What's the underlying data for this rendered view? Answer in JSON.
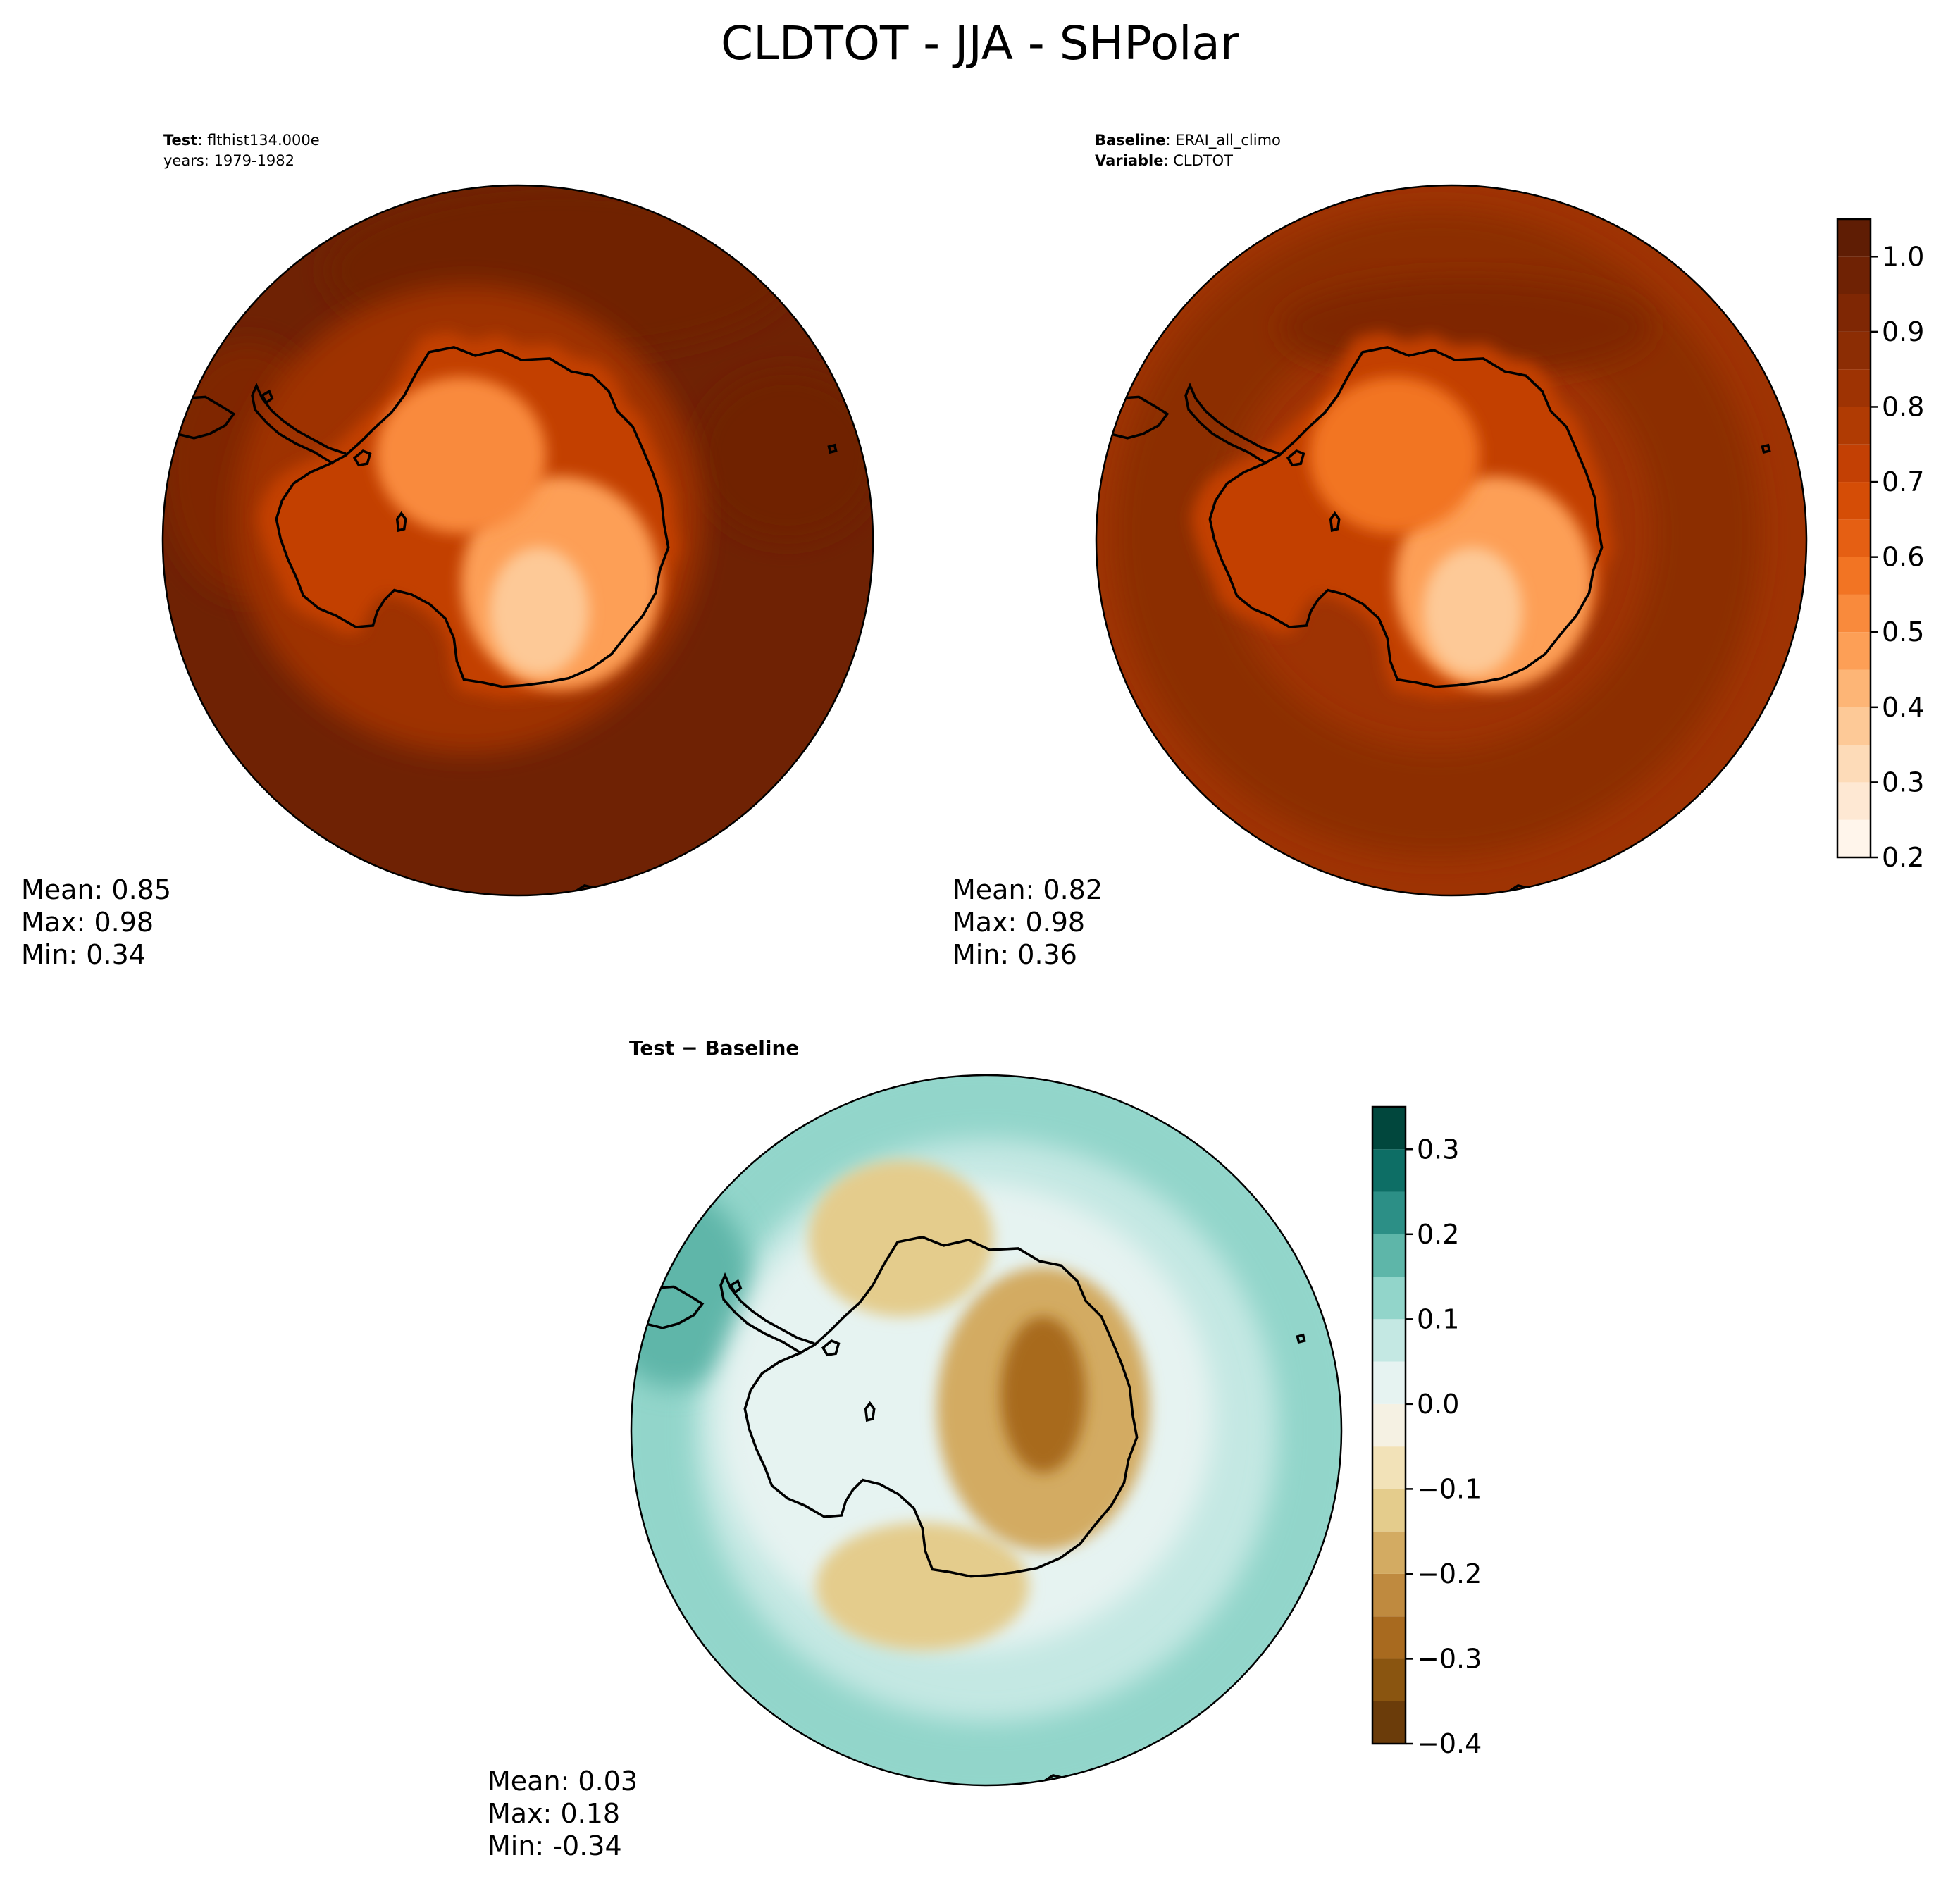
{
  "figure": {
    "suptitle": "CLDTOT - JJA - SHPolar"
  },
  "panels": {
    "test": {
      "label_bold": "Test",
      "label_text": ": flthist134.000e",
      "line2": "years: 1979-1982",
      "stats": {
        "mean": "Mean:  0.85",
        "max": "Max:  0.98",
        "min": "Min:  0.34"
      }
    },
    "baseline": {
      "label_bold": "Baseline",
      "label_text": ": ERAI_all_climo",
      "line2_bold": "Variable",
      "line2_text": ": CLDTOT",
      "stats": {
        "mean": "Mean:  0.82",
        "max": "Max:  0.98",
        "min": "Min:  0.36"
      }
    },
    "diff": {
      "label_bold": "Test − Baseline",
      "stats": {
        "mean": "Mean:  0.03",
        "max": "Max:  0.18",
        "min": "Min: -0.34"
      }
    }
  },
  "chart_data": [
    {
      "type": "heatmap",
      "projection": "south-polar-stereographic",
      "panel": "test",
      "field": "CLDTOT",
      "colormap": "Oranges",
      "colorbar_shared_with": "baseline",
      "summary": {
        "mean": 0.85,
        "max": 0.98,
        "min": 0.34
      },
      "ocean_level": 0.95,
      "features": [
        {
          "region": "ocean-south-pacific",
          "level": 0.97
        },
        {
          "region": "ocean-indian",
          "level": 0.97
        },
        {
          "region": "ocean-far-atlantic",
          "level": 0.9
        },
        {
          "region": "ice-shelf-ring",
          "level": 0.82
        },
        {
          "region": "coastal-band",
          "level": 0.72
        },
        {
          "region": "plateau-east",
          "level": 0.45
        },
        {
          "region": "plateau-west",
          "level": 0.5
        },
        {
          "region": "plateau-core",
          "level": 0.35
        }
      ]
    },
    {
      "type": "heatmap",
      "projection": "south-polar-stereographic",
      "panel": "baseline",
      "field": "CLDTOT",
      "colormap": "Oranges",
      "colorbar": {
        "ticks": [
          1.0,
          0.9,
          0.8,
          0.7,
          0.6,
          0.5,
          0.4,
          0.3,
          0.2
        ],
        "tick_labels": [
          "1.0",
          "0.9",
          "0.8",
          "0.7",
          "0.6",
          "0.5",
          "0.4",
          "0.3",
          "0.2"
        ],
        "range": [
          0.2,
          1.05
        ],
        "levels": [
          0.2,
          0.25,
          0.3,
          0.35,
          0.4,
          0.45,
          0.5,
          0.55,
          0.6,
          0.65,
          0.7,
          0.75,
          0.8,
          0.85,
          0.9,
          0.95,
          1.0,
          1.05
        ],
        "colors": [
          "#fff5eb",
          "#fee8d3",
          "#fddbb8",
          "#fdc997",
          "#fdb576",
          "#fd9f56",
          "#f98a3c",
          "#f27423",
          "#e55f13",
          "#d54d06",
          "#c34004",
          "#b03b03",
          "#9e3303",
          "#8c2d04",
          "#7f2704",
          "#6f2204",
          "#5f1d04"
        ]
      },
      "summary": {
        "mean": 0.82,
        "max": 0.98,
        "min": 0.36
      },
      "ocean_level": 0.8,
      "features": [
        {
          "region": "storm-track-ring",
          "level": 0.87
        },
        {
          "region": "ocean-pacific-band",
          "level": 0.9
        },
        {
          "region": "coastal-band",
          "level": 0.72
        },
        {
          "region": "plateau-east",
          "level": 0.45
        },
        {
          "region": "plateau-west",
          "level": 0.55
        },
        {
          "region": "plateau-core",
          "level": 0.38
        }
      ]
    },
    {
      "type": "heatmap",
      "projection": "south-polar-stereographic",
      "panel": "diff",
      "field": "CLDTOT difference",
      "colormap": "BrBG",
      "colorbar": {
        "ticks": [
          0.3,
          0.2,
          0.1,
          0.0,
          -0.1,
          -0.2,
          -0.3,
          -0.4
        ],
        "tick_labels": [
          "0.3",
          "0.2",
          "0.1",
          "0.0",
          "−0.1",
          "−0.2",
          "−0.3",
          "−0.4"
        ],
        "range": [
          -0.4,
          0.35
        ],
        "levels": [
          -0.4,
          -0.35,
          -0.3,
          -0.25,
          -0.2,
          -0.15,
          -0.1,
          -0.05,
          0.0,
          0.05,
          0.1,
          0.15,
          0.2,
          0.25,
          0.3,
          0.35
        ],
        "colors": [
          "#6b3c0a",
          "#8a5510",
          "#a86a1f",
          "#bf8a3f",
          "#d3ab62",
          "#e4cc8c",
          "#f2e2b8",
          "#f5f1e3",
          "#e6f3f1",
          "#c4e8e3",
          "#92d5ca",
          "#5eb6a9",
          "#2c8f86",
          "#0d6e65",
          "#01473d"
        ]
      },
      "summary": {
        "mean": 0.03,
        "max": 0.18,
        "min": -0.34
      },
      "ocean_level": 0.06,
      "features": [
        {
          "region": "outer-ring",
          "level": 0.12
        },
        {
          "region": "far-corner-pacific",
          "level": 0.17
        },
        {
          "region": "near-coast-ring",
          "level": 0.02
        },
        {
          "region": "weddell-low",
          "level": -0.12
        },
        {
          "region": "ross-low",
          "level": -0.14
        },
        {
          "region": "plateau-low",
          "level": -0.18
        },
        {
          "region": "plateau-core-low",
          "level": -0.28
        }
      ]
    }
  ]
}
